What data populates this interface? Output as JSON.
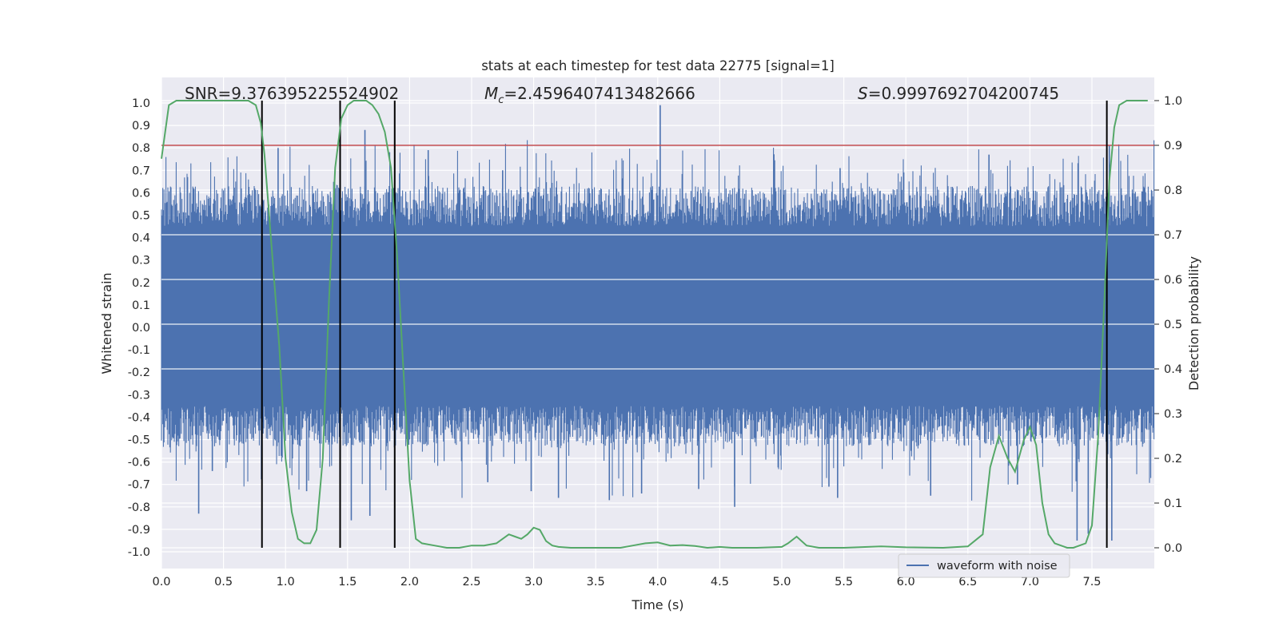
{
  "chart_data": {
    "type": "line",
    "title": "stats at each timestep for test data 22775 [signal=1]",
    "xlabel": "Time (s)",
    "ylabel": "Whitened strain",
    "y2label": "Detection probability",
    "xlim": [
      0.0,
      8.0
    ],
    "ylim": [
      -1.07,
      1.1
    ],
    "y2lim": [
      -0.05,
      1.03
    ],
    "x_ticks": [
      "0.0",
      "0.5",
      "1.0",
      "1.5",
      "2.0",
      "2.5",
      "3.0",
      "3.5",
      "4.0",
      "4.5",
      "5.0",
      "5.5",
      "6.0",
      "6.5",
      "7.0",
      "7.5"
    ],
    "y_ticks": [
      "1.0",
      "0.9",
      "0.8",
      "0.7",
      "0.6",
      "0.5",
      "0.4",
      "0.3",
      "0.2",
      "0.1",
      "0.0",
      "-0.1",
      "-0.2",
      "-0.3",
      "-0.4",
      "-0.5",
      "-0.6",
      "-0.7",
      "-0.8",
      "-0.9",
      "-1.0"
    ],
    "y2_ticks": [
      "1.0",
      "0.9",
      "0.8",
      "0.7",
      "0.6",
      "0.5",
      "0.4",
      "0.3",
      "0.2",
      "0.1",
      "0.0"
    ],
    "grid": true,
    "annotations": {
      "snr": "SNR=9.376395225524902",
      "mc_prefix": "M",
      "mc_sub": "c",
      "mc_value": "=2.4596407413482666",
      "s_prefix": "S",
      "s_value": "=0.9997692704200745"
    },
    "legend": {
      "placement": "lower-right",
      "entries": [
        "waveform with noise"
      ]
    },
    "colors": {
      "strain": "#4c72b0",
      "probability": "#55a868",
      "threshold": "#c44e52",
      "markers": "#000000",
      "background": "#eaeaf2",
      "grid": "#ffffff"
    },
    "threshold": {
      "axis": "y2",
      "value": 0.9
    },
    "detection_markers_x": [
      0.81,
      1.44,
      1.88,
      7.62
    ],
    "strain_envelope": {
      "core_band": [
        -0.35,
        0.45
      ],
      "spikes": [
        {
          "x": 0.3,
          "y": -0.83
        },
        {
          "x": 0.41,
          "y": -0.64
        },
        {
          "x": 0.94,
          "y": 0.8
        },
        {
          "x": 1.17,
          "y": -0.73
        },
        {
          "x": 1.53,
          "y": -0.86
        },
        {
          "x": 1.64,
          "y": 0.88
        },
        {
          "x": 1.68,
          "y": -0.84
        },
        {
          "x": 2.15,
          "y": 0.79
        },
        {
          "x": 2.63,
          "y": -0.69
        },
        {
          "x": 2.75,
          "y": 0.7
        },
        {
          "x": 2.98,
          "y": -0.73
        },
        {
          "x": 3.2,
          "y": -0.76
        },
        {
          "x": 3.61,
          "y": -0.77
        },
        {
          "x": 3.87,
          "y": -0.74
        },
        {
          "x": 4.02,
          "y": 0.99
        },
        {
          "x": 4.33,
          "y": -0.72
        },
        {
          "x": 4.62,
          "y": -0.8
        },
        {
          "x": 5.38,
          "y": -0.71
        },
        {
          "x": 5.45,
          "y": -0.76
        },
        {
          "x": 5.47,
          "y": 0.71
        },
        {
          "x": 6.2,
          "y": -0.75
        },
        {
          "x": 6.38,
          "y": 0.62
        },
        {
          "x": 6.67,
          "y": 0.77
        },
        {
          "x": 6.9,
          "y": -0.7
        },
        {
          "x": 7.38,
          "y": -0.95
        },
        {
          "x": 7.47,
          "y": -0.92
        },
        {
          "x": 7.64,
          "y": 0.81
        },
        {
          "x": 7.66,
          "y": -0.95
        }
      ]
    },
    "series": [
      {
        "name": "waveform with noise",
        "axis": "y1",
        "style": "dense-noise"
      },
      {
        "axis": "y2",
        "x": [
          0.0,
          0.06,
          0.12,
          0.2,
          0.3,
          0.4,
          0.5,
          0.6,
          0.7,
          0.76,
          0.8,
          0.83,
          0.88,
          0.95,
          1.0,
          1.05,
          1.1,
          1.15,
          1.2,
          1.25,
          1.3,
          1.35,
          1.4,
          1.45,
          1.5,
          1.55,
          1.6,
          1.65,
          1.7,
          1.75,
          1.8,
          1.85,
          1.9,
          1.95,
          2.0,
          2.05,
          2.1,
          2.2,
          2.3,
          2.4,
          2.5,
          2.6,
          2.7,
          2.75,
          2.8,
          2.85,
          2.9,
          2.95,
          3.0,
          3.05,
          3.1,
          3.15,
          3.2,
          3.3,
          3.5,
          3.7,
          3.8,
          3.9,
          4.0,
          4.1,
          4.2,
          4.3,
          4.4,
          4.5,
          4.6,
          4.8,
          5.0,
          5.05,
          5.12,
          5.2,
          5.3,
          5.5,
          5.8,
          6.0,
          6.3,
          6.5,
          6.62,
          6.68,
          6.75,
          6.82,
          6.88,
          6.95,
          7.0,
          7.05,
          7.1,
          7.15,
          7.2,
          7.25,
          7.3,
          7.35,
          7.4,
          7.45,
          7.5,
          7.55,
          7.6,
          7.64,
          7.68,
          7.72,
          7.78,
          7.85,
          7.95
        ],
        "values": [
          0.87,
          0.99,
          1.0,
          1.0,
          1.0,
          1.0,
          1.0,
          1.0,
          1.0,
          0.99,
          0.95,
          0.88,
          0.7,
          0.45,
          0.2,
          0.08,
          0.02,
          0.01,
          0.01,
          0.04,
          0.2,
          0.55,
          0.85,
          0.96,
          0.99,
          1.0,
          1.0,
          1.0,
          0.99,
          0.97,
          0.93,
          0.85,
          0.65,
          0.4,
          0.15,
          0.02,
          0.01,
          0.005,
          0.0,
          0.0,
          0.005,
          0.005,
          0.01,
          0.02,
          0.03,
          0.025,
          0.02,
          0.03,
          0.045,
          0.04,
          0.015,
          0.005,
          0.002,
          0.0,
          0.0,
          0.0,
          0.005,
          0.01,
          0.012,
          0.005,
          0.006,
          0.004,
          0.0,
          0.002,
          0.0,
          0.0,
          0.002,
          0.01,
          0.025,
          0.005,
          0.0,
          0.0,
          0.003,
          0.001,
          0.0,
          0.003,
          0.03,
          0.18,
          0.25,
          0.2,
          0.17,
          0.24,
          0.27,
          0.23,
          0.1,
          0.03,
          0.01,
          0.005,
          0.0,
          0.0,
          0.005,
          0.01,
          0.05,
          0.25,
          0.55,
          0.82,
          0.94,
          0.99,
          1.0,
          1.0,
          1.0
        ]
      }
    ]
  }
}
